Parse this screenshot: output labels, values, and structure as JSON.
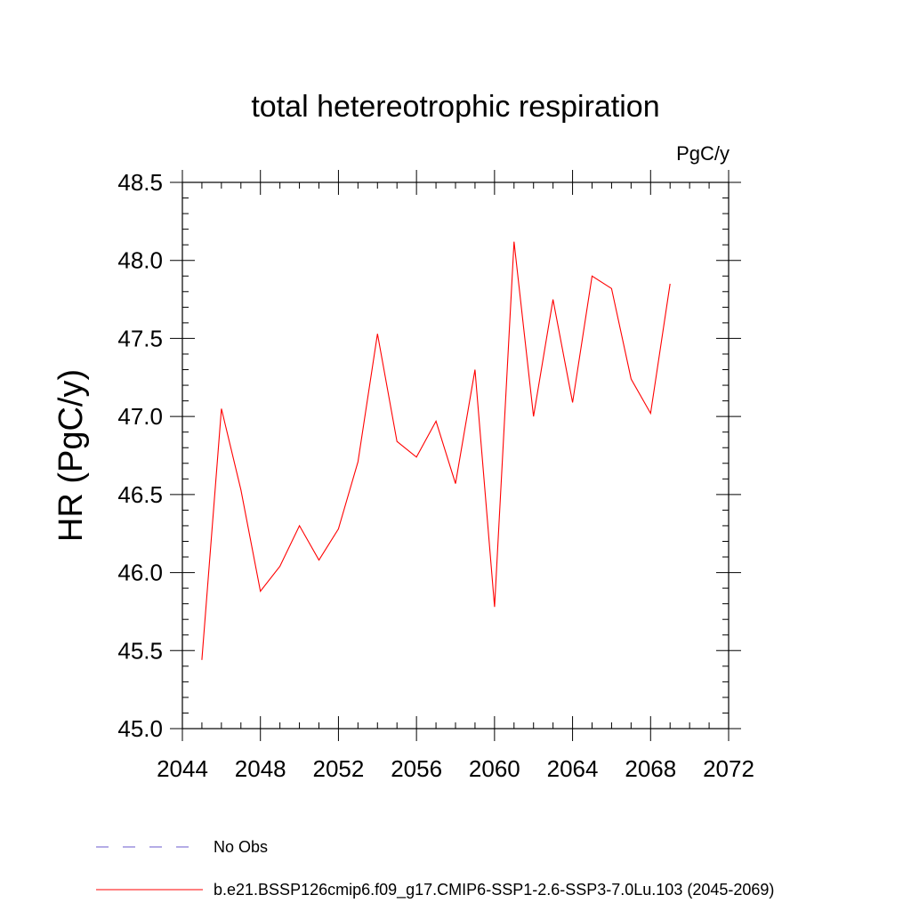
{
  "chart_data": {
    "type": "line",
    "title": "total hetereotrophic respiration",
    "units_label": "PgC/y",
    "xlabel": "",
    "ylabel": "HR  (PgC/y)",
    "xlim": [
      2044,
      2072
    ],
    "ylim": [
      45.0,
      48.5
    ],
    "x_ticks": [
      2044,
      2048,
      2052,
      2056,
      2060,
      2064,
      2068,
      2072
    ],
    "x_tick_labels": [
      "2044",
      "2048",
      "2052",
      "2056",
      "2060",
      "2064",
      "2068",
      "2072"
    ],
    "y_ticks": [
      45.0,
      45.5,
      46.0,
      46.5,
      47.0,
      47.5,
      48.0,
      48.5
    ],
    "y_tick_labels": [
      "45.0",
      "45.5",
      "46.0",
      "46.5",
      "47.0",
      "47.5",
      "48.0",
      "48.5"
    ],
    "x_minor_step": 1,
    "y_minor_step": 0.1,
    "grid": false,
    "legend_position": "bottom-left",
    "legend": [
      {
        "label": "No Obs",
        "color": "#6a5acd",
        "dash": true
      },
      {
        "label": "b.e21.BSSP126cmip6.f09_g17.CMIP6-SSP1-2.6-SSP3-7.0Lu.103 (2045-2069)",
        "color": "#ff0000",
        "dash": false
      }
    ],
    "series": [
      {
        "color": "#ff0000",
        "x": [
          2045,
          2046,
          2047,
          2048,
          2049,
          2050,
          2051,
          2052,
          2053,
          2054,
          2055,
          2056,
          2057,
          2058,
          2059,
          2060,
          2061,
          2062,
          2063,
          2064,
          2065,
          2066,
          2067,
          2068,
          2069
        ],
        "y": [
          45.44,
          47.05,
          46.53,
          45.88,
          46.04,
          46.3,
          46.08,
          46.28,
          46.71,
          47.53,
          46.84,
          46.74,
          46.97,
          46.57,
          47.3,
          45.78,
          48.12,
          47.0,
          47.75,
          47.09,
          47.9,
          47.82,
          47.24,
          47.02,
          47.85
        ]
      }
    ]
  }
}
